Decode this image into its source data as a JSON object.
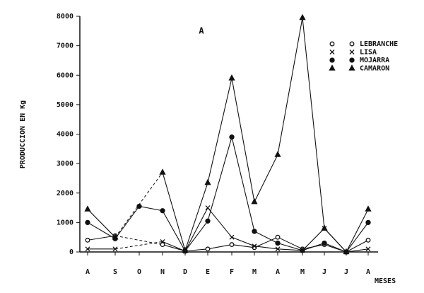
{
  "chart_data": {
    "type": "line",
    "annotation": "A",
    "y_label": "PRODUCCION EN Kg",
    "x_label": "MESES",
    "categories": [
      "A",
      "S",
      "O",
      "N",
      "D",
      "E",
      "F",
      "M",
      "A",
      "M",
      "J",
      "J",
      "A"
    ],
    "ylim": [
      0,
      8000
    ],
    "yticks": [
      0,
      1000,
      2000,
      3000,
      4000,
      5000,
      6000,
      7000,
      8000
    ],
    "legend": "top-right",
    "series": [
      {
        "name": "LEBRANCHE",
        "color": "#111111",
        "marker": "open-circle",
        "values": [
          400,
          550,
          null,
          250,
          30,
          100,
          250,
          150,
          500,
          100,
          250,
          0,
          400
        ]
      },
      {
        "name": "LISA",
        "color": "#111111",
        "marker": "x",
        "values": [
          100,
          100,
          null,
          350,
          30,
          1500,
          500,
          200,
          100,
          50,
          800,
          0,
          100
        ]
      },
      {
        "name": "MOJARRA",
        "color": "#111111",
        "marker": "filled-circle",
        "values": [
          1000,
          450,
          1550,
          1400,
          30,
          1050,
          3900,
          700,
          300,
          50,
          300,
          0,
          1000
        ]
      },
      {
        "name": "CAMARON",
        "color": "#111111",
        "marker": "triangle",
        "values": [
          1450,
          500,
          null,
          2700,
          50,
          2350,
          5900,
          1700,
          3300,
          7950,
          800,
          0,
          1450
        ]
      }
    ]
  }
}
